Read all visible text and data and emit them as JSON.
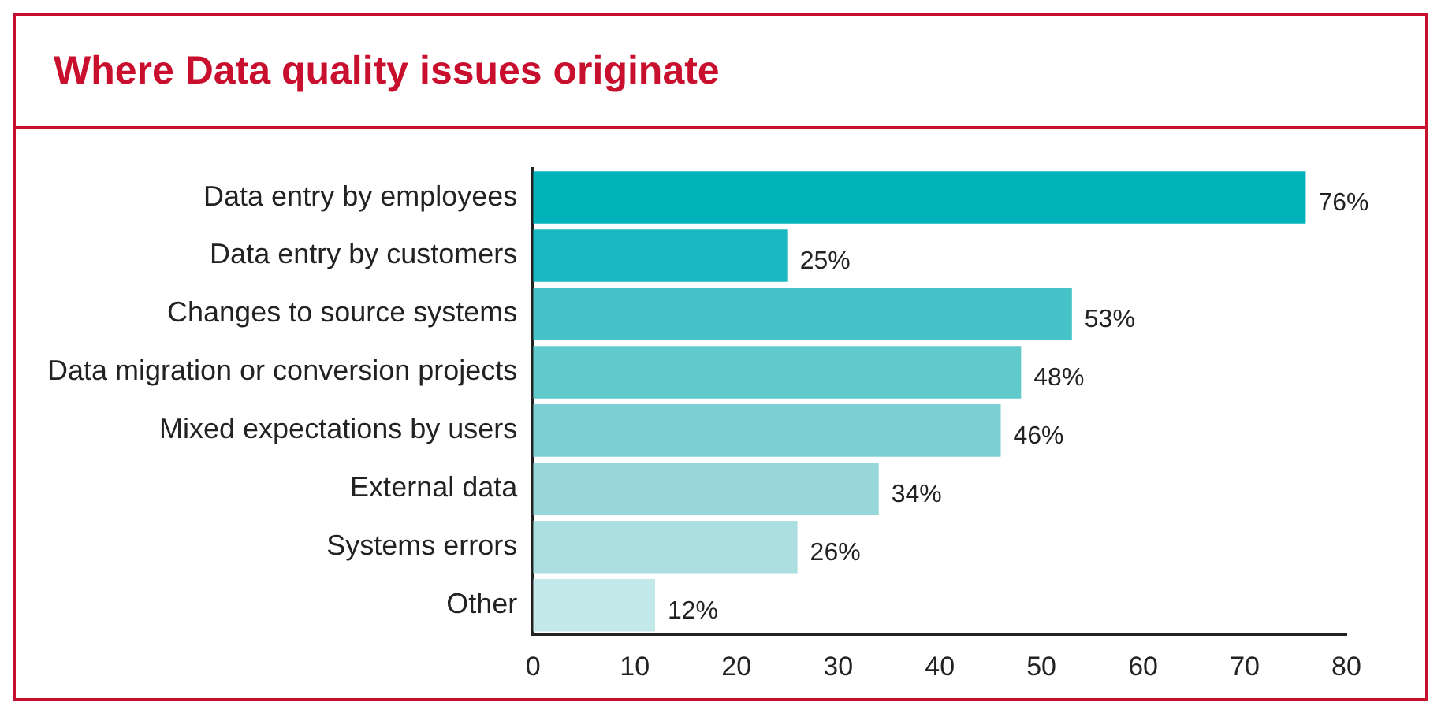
{
  "chart_data": {
    "type": "bar",
    "orientation": "horizontal",
    "title": "Where Data quality issues originate",
    "categories": [
      "Data entry by employees",
      "Data entry by customers",
      "Changes to source systems",
      "Data migration or conversion projects",
      "Mixed expectations by users",
      "External data",
      "Systems errors",
      "Other"
    ],
    "values": [
      76,
      25,
      53,
      48,
      46,
      34,
      26,
      12
    ],
    "colors": [
      "#00b3bb",
      "#17b8c0",
      "#45c3c8",
      "#60c9cc",
      "#7ccfd2",
      "#97d7da",
      "#acdfe0",
      "#c3e8e9"
    ],
    "value_labels": [
      "76%",
      "25%",
      "53%",
      "48%",
      "46%",
      "34%",
      "26%",
      "12%"
    ],
    "xlim": [
      0,
      80
    ],
    "xticks": [
      0,
      10,
      20,
      30,
      40,
      50,
      60,
      70,
      80
    ],
    "grid": false,
    "legend": false
  }
}
